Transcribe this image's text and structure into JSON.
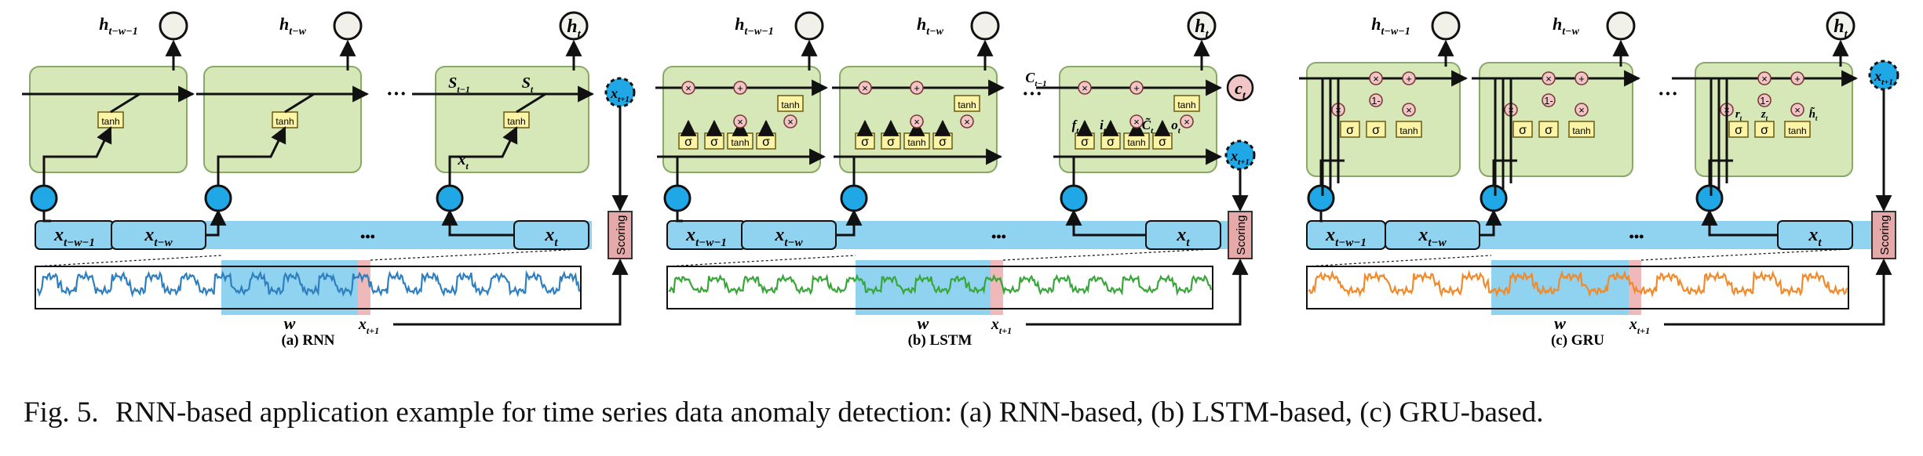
{
  "caption": {
    "prefix": "Fig. 5.",
    "text": "RNN-based application example for time series data anomaly detection: (a) RNN-based, (b) LSTM-based, (c) GRU-based."
  },
  "symbols": {
    "tanh": "tanh",
    "sigma": "σ",
    "times": "×",
    "plus": "+",
    "one_minus": "1-",
    "ellipsis": "•••",
    "cell_dots": "···",
    "scoring": "Scoring",
    "window": "w",
    "x_next": "x",
    "x_next_sub": "t+1"
  },
  "colors": {
    "cell_fill": "#d6e8b8",
    "cell_border": "#8aa86a",
    "input_node": "#1fa7e6",
    "input_bar": "#8fd3f0",
    "window_fill": "#8fd3f0",
    "next_window": "#f0b9b9",
    "scoring_fill": "#e6a9a9",
    "gate_fill": "#fbf3a6",
    "op_fill": "#f2c6c6",
    "rnn_series": "#2f7fbf",
    "lstm_series": "#3aa53a",
    "gru_series": "#f08a2a",
    "gru_window_series": "#8a8a70"
  },
  "panels": [
    {
      "key": "rnn",
      "label": "(a) RNN",
      "outputs": [
        {
          "base": "h",
          "sub": "t−w−1"
        },
        {
          "base": "h",
          "sub": "t−w"
        },
        {
          "base": "h",
          "sub": "t"
        }
      ],
      "inputs": [
        {
          "base": "x",
          "sub": "t−w−1"
        },
        {
          "base": "x",
          "sub": "t−w"
        },
        {
          "base": "x",
          "sub": "t"
        }
      ],
      "state_labels": [
        {
          "base": "S",
          "sub": "t−1"
        },
        {
          "base": "S",
          "sub": "t"
        }
      ],
      "cell_input": {
        "base": "x",
        "sub": "t"
      }
    },
    {
      "key": "lstm",
      "label": "(b) LSTM",
      "outputs": [
        {
          "base": "h",
          "sub": "t−w−1"
        },
        {
          "base": "h",
          "sub": "t−w"
        },
        {
          "base": "h",
          "sub": "t"
        }
      ],
      "inputs": [
        {
          "base": "x",
          "sub": "t−w−1"
        },
        {
          "base": "x",
          "sub": "t−w"
        },
        {
          "base": "x",
          "sub": "t"
        }
      ],
      "cell_state": {
        "base": "C",
        "sub": "t−1"
      },
      "cell_state_out": {
        "base": "c",
        "sub": "t"
      },
      "gate_labels": [
        {
          "base": "f",
          "sub": "t"
        },
        {
          "base": "i",
          "sub": "t"
        },
        {
          "base": "C̃",
          "sub": "t"
        },
        {
          "base": "o",
          "sub": "t"
        }
      ]
    },
    {
      "key": "gru",
      "label": "(c) GRU",
      "outputs": [
        {
          "base": "h",
          "sub": "t−w−1"
        },
        {
          "base": "h",
          "sub": "t−w"
        },
        {
          "base": "h",
          "sub": "t"
        }
      ],
      "inputs": [
        {
          "base": "x",
          "sub": "t−w−1"
        },
        {
          "base": "x",
          "sub": "t−w"
        },
        {
          "base": "x",
          "sub": "t"
        }
      ],
      "gate_labels": [
        {
          "base": "r",
          "sub": "t"
        },
        {
          "base": "z",
          "sub": "t"
        },
        {
          "base": "h̃",
          "sub": "t"
        }
      ]
    }
  ]
}
